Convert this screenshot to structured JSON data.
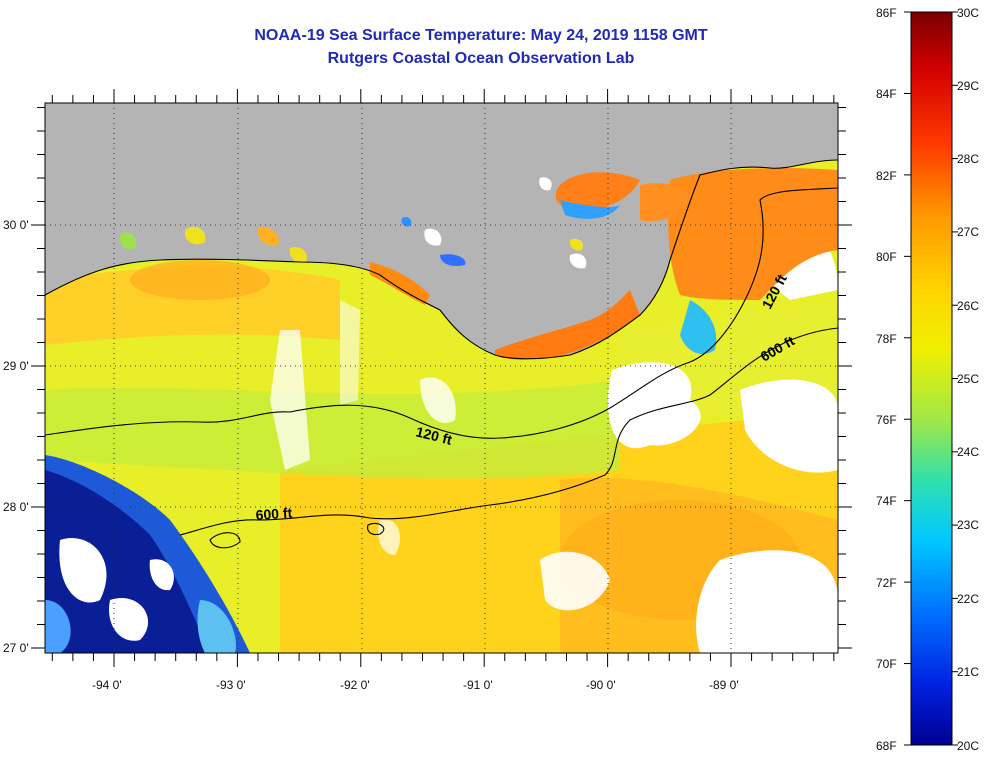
{
  "header": {
    "title": "NOAA-19 Sea Surface Temperature:  May 24, 2019 1158 GMT",
    "subtitle": "Rutgers Coastal Ocean Observation Lab"
  },
  "map": {
    "lat_labels": [
      "30 0'",
      "29 0'",
      "28 0'",
      "27 0'"
    ],
    "lon_labels": [
      "-94 0'",
      "-93 0'",
      "-92 0'",
      "-91 0'",
      "-90 0'",
      "-89 0'"
    ],
    "contours": {
      "inner": "120 ft",
      "outer": "600 ft"
    }
  },
  "colorbar": {
    "fahrenheit": [
      "86F",
      "84F",
      "82F",
      "80F",
      "78F",
      "76F",
      "74F",
      "72F",
      "70F",
      "68F"
    ],
    "celsius": [
      "30C",
      "29C",
      "28C",
      "27C",
      "26C",
      "25C",
      "24C",
      "23C",
      "22C",
      "21C",
      "20C"
    ],
    "gradient": [
      "#7a0000",
      "#d40000",
      "#ff4a00",
      "#ff9a00",
      "#ffd400",
      "#f4f000",
      "#9ce84a",
      "#2fe0b0",
      "#00c8ff",
      "#0070ff",
      "#0020e0",
      "#000090"
    ]
  }
}
